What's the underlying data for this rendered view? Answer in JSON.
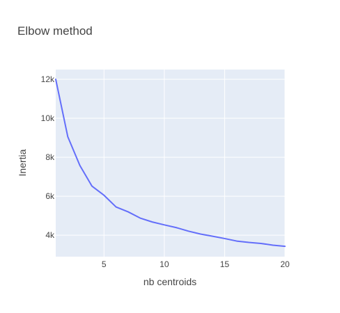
{
  "chart_data": {
    "type": "line",
    "title": "Elbow method",
    "xlabel": "nb centroids",
    "ylabel": "Inertia",
    "xlim": [
      1,
      20
    ],
    "ylim": [
      2900,
      12500
    ],
    "grid": true,
    "legend": "none",
    "x_ticks": [
      {
        "value": 5,
        "label": "5"
      },
      {
        "value": 10,
        "label": "10"
      },
      {
        "value": 15,
        "label": "15"
      },
      {
        "value": 20,
        "label": "20"
      }
    ],
    "y_ticks": [
      {
        "value": 4000,
        "label": "4k"
      },
      {
        "value": 6000,
        "label": "6k"
      },
      {
        "value": 8000,
        "label": "8k"
      },
      {
        "value": 10000,
        "label": "10k"
      },
      {
        "value": 12000,
        "label": "12k"
      }
    ],
    "series": [
      {
        "color": "#636efa",
        "x": [
          1,
          2,
          3,
          4,
          5,
          6,
          7,
          8,
          9,
          10,
          11,
          12,
          13,
          14,
          15,
          16,
          17,
          18,
          19,
          20
        ],
        "y": [
          12000,
          9050,
          7580,
          6520,
          6050,
          5450,
          5200,
          4880,
          4680,
          4530,
          4390,
          4210,
          4060,
          3950,
          3830,
          3700,
          3630,
          3580,
          3490,
          3430
        ]
      }
    ]
  },
  "colors": {
    "plot_background": "#e5ecf6",
    "grid": "#ffffff",
    "text": "#444444"
  }
}
